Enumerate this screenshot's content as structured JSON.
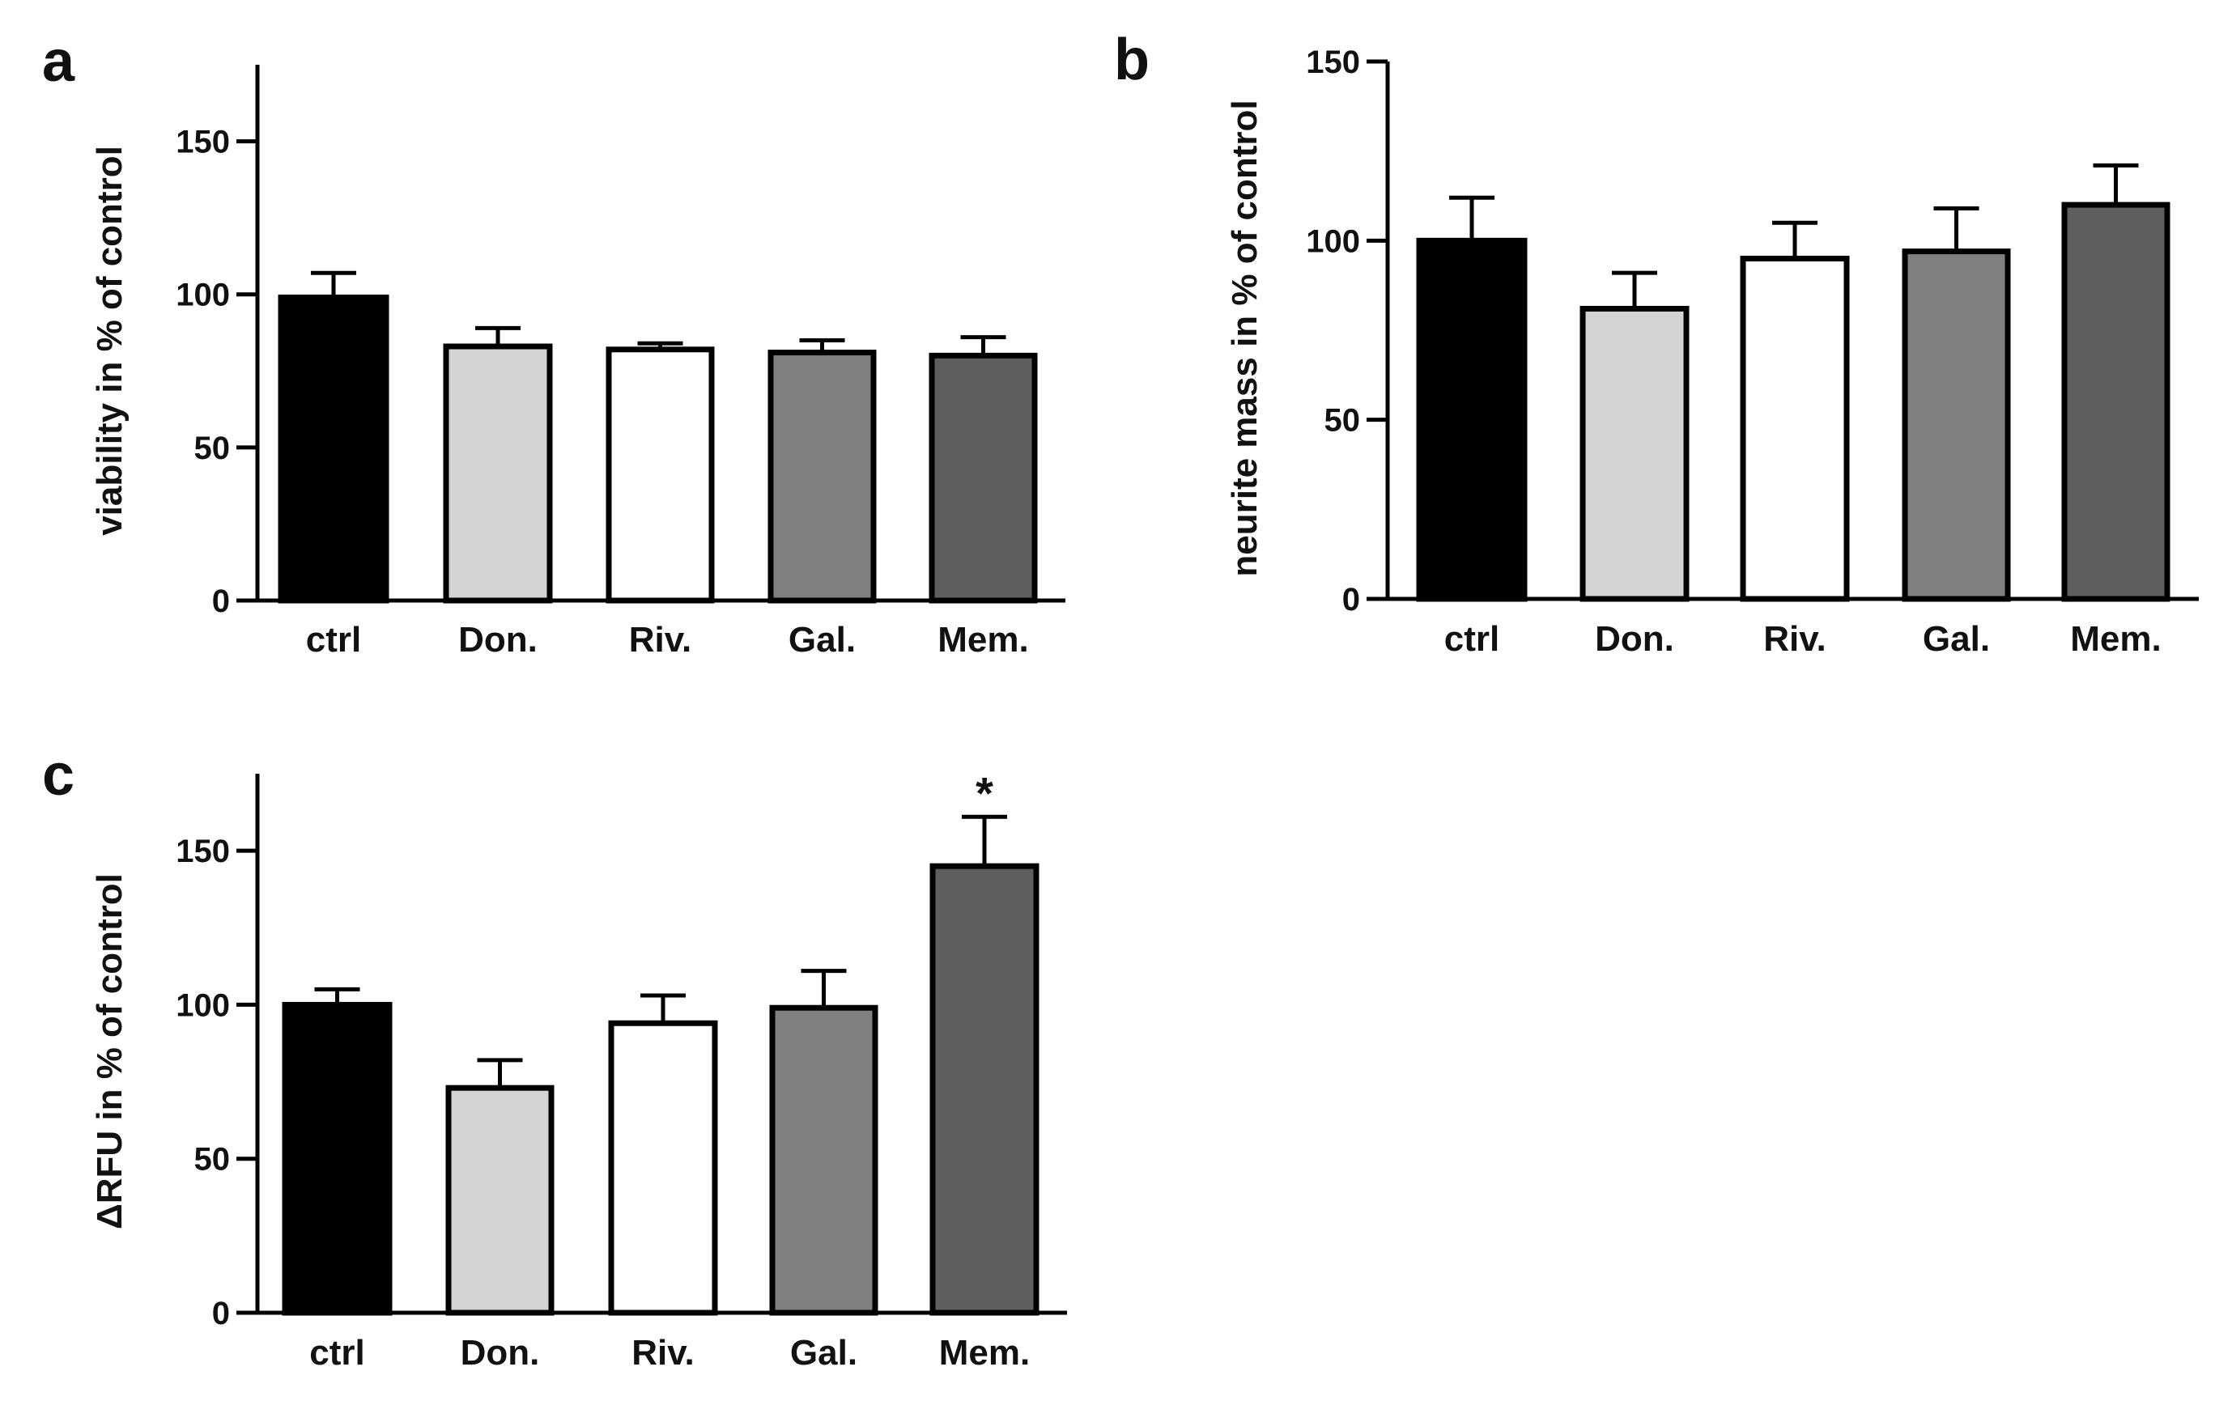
{
  "figure": {
    "title": ""
  },
  "chart_data": [
    {
      "panel": "a",
      "type": "bar",
      "title": "",
      "xlabel": "",
      "ylabel": "viability in % of control",
      "categories": [
        "ctrl",
        "Don.",
        "Riv.",
        "Gal.",
        "Mem."
      ],
      "values": [
        99,
        83,
        82,
        81,
        80
      ],
      "errors": [
        8,
        6,
        2,
        4,
        6
      ],
      "annotations": [
        "",
        "",
        "",
        "",
        ""
      ],
      "ylim": [
        0,
        175
      ],
      "yticks": [
        0,
        50,
        100,
        150
      ],
      "bar_colors": [
        "#000000",
        "#d3d3d3",
        "#ffffff",
        "#808080",
        "#5e5e5e"
      ],
      "grid": false
    },
    {
      "panel": "b",
      "type": "bar",
      "title": "",
      "xlabel": "",
      "ylabel": "neurite mass in % of control",
      "categories": [
        "ctrl",
        "Don.",
        "Riv.",
        "Gal.",
        "Mem."
      ],
      "values": [
        100,
        81,
        95,
        97,
        110
      ],
      "errors": [
        12,
        10,
        10,
        12,
        11
      ],
      "annotations": [
        "",
        "",
        "",
        "",
        ""
      ],
      "ylim": [
        0,
        150
      ],
      "yticks": [
        0,
        50,
        100,
        150
      ],
      "bar_colors": [
        "#000000",
        "#d3d3d3",
        "#ffffff",
        "#808080",
        "#5e5e5e"
      ],
      "grid": false
    },
    {
      "panel": "c",
      "type": "bar",
      "title": "",
      "xlabel": "",
      "ylabel": "ΔRFU in % of control",
      "categories": [
        "ctrl",
        "Don.",
        "Riv.",
        "Gal.",
        "Mem."
      ],
      "values": [
        100,
        73,
        94,
        99,
        145
      ],
      "errors": [
        5,
        9,
        9,
        12,
        16
      ],
      "annotations": [
        "",
        "",
        "",
        "",
        "*"
      ],
      "ylim": [
        0,
        175
      ],
      "yticks": [
        0,
        50,
        100,
        150
      ],
      "bar_colors": [
        "#000000",
        "#d3d3d3",
        "#ffffff",
        "#808080",
        "#5e5e5e"
      ],
      "grid": false
    }
  ]
}
